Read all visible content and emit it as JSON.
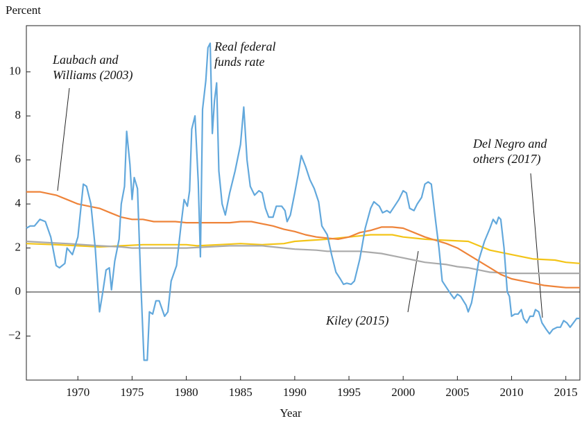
{
  "chart_data": {
    "type": "line",
    "y_label": "Percent",
    "x_label": "Year",
    "xlim": [
      1965.25,
      2016.3
    ],
    "ylim": [
      -4,
      12.1
    ],
    "xticks": [
      1970,
      1975,
      1980,
      1985,
      1990,
      1995,
      2000,
      2005,
      2010,
      2015
    ],
    "yticks": [
      {
        "value": -2,
        "label": "−2"
      },
      0,
      2,
      4,
      6,
      8,
      10
    ],
    "zero_line": true,
    "series": [
      {
        "name": "Real federal funds rate",
        "color": "#62a8dc",
        "x": [
          1965.25,
          1965.6,
          1966,
          1966.5,
          1967,
          1967.5,
          1968,
          1968.3,
          1968.8,
          1969,
          1969.5,
          1970,
          1970.5,
          1970.8,
          1971.2,
          1971.6,
          1972,
          1972.3,
          1972.6,
          1972.9,
          1973.1,
          1973.4,
          1973.8,
          1974,
          1974.3,
          1974.5,
          1974.8,
          1975,
          1975.2,
          1975.5,
          1975.8,
          1976.1,
          1976.4,
          1976.6,
          1976.9,
          1977.2,
          1977.5,
          1978,
          1978.3,
          1978.6,
          1979.1,
          1979.5,
          1979.8,
          1980.1,
          1980.3,
          1980.5,
          1980.8,
          1981.1,
          1981.3,
          1981.5,
          1981.8,
          1982,
          1982.2,
          1982.4,
          1982.6,
          1982.8,
          1983,
          1983.3,
          1983.6,
          1984,
          1984.5,
          1985,
          1985.3,
          1985.6,
          1985.9,
          1986.3,
          1986.7,
          1987,
          1987.3,
          1987.6,
          1988,
          1988.3,
          1988.8,
          1989.1,
          1989.3,
          1989.6,
          1990,
          1990.3,
          1990.6,
          1991,
          1991.4,
          1991.8,
          1992.2,
          1992.5,
          1993,
          1993.4,
          1993.8,
          1994.2,
          1994.5,
          1994.8,
          1995.2,
          1995.5,
          1996,
          1996.5,
          1997,
          1997.3,
          1997.8,
          1998.1,
          1998.5,
          1998.8,
          1999.2,
          1999.6,
          2000,
          2000.3,
          2000.6,
          2001,
          2001.3,
          2001.7,
          2002,
          2002.3,
          2002.6,
          2003,
          2003.3,
          2003.6,
          2004,
          2004.4,
          2004.7,
          2005,
          2005.3,
          2005.8,
          2006,
          2006.3,
          2006.6,
          2007,
          2007.5,
          2008,
          2008.3,
          2008.6,
          2008.8,
          2009,
          2009.3,
          2009.6,
          2009.8,
          2010,
          2010.3,
          2010.6,
          2010.9,
          2011.1,
          2011.4,
          2011.7,
          2012,
          2012.2,
          2012.5,
          2012.8,
          2013.2,
          2013.5,
          2013.8,
          2014.2,
          2014.5,
          2014.8,
          2015.1,
          2015.4,
          2015.7,
          2016,
          2016.3
        ],
        "values": [
          2.9,
          3.0,
          3.0,
          3.3,
          3.2,
          2.5,
          1.2,
          1.1,
          1.3,
          2.0,
          1.7,
          2.5,
          4.9,
          4.8,
          4.0,
          2.0,
          -0.9,
          0.0,
          1.0,
          1.1,
          0.1,
          1.4,
          2.4,
          4.0,
          4.8,
          7.3,
          5.8,
          4.2,
          5.2,
          4.7,
          0.5,
          -3.1,
          -3.1,
          -0.9,
          -1.0,
          -0.4,
          -0.4,
          -1.1,
          -0.9,
          0.5,
          1.2,
          3.0,
          4.2,
          3.9,
          4.6,
          7.4,
          8.0,
          5.0,
          1.6,
          8.3,
          9.6,
          11.1,
          11.3,
          7.2,
          8.7,
          9.5,
          5.5,
          4.0,
          3.5,
          4.5,
          5.5,
          6.7,
          8.4,
          6.0,
          4.8,
          4.4,
          4.6,
          4.5,
          3.8,
          3.4,
          3.4,
          3.9,
          3.9,
          3.7,
          3.2,
          3.5,
          4.5,
          5.3,
          6.2,
          5.7,
          5.1,
          4.7,
          4.1,
          3.0,
          2.6,
          1.7,
          0.9,
          0.6,
          0.35,
          0.4,
          0.35,
          0.5,
          1.5,
          2.9,
          3.8,
          4.1,
          3.9,
          3.6,
          3.7,
          3.6,
          3.9,
          4.2,
          4.6,
          4.5,
          3.8,
          3.7,
          4.0,
          4.3,
          4.9,
          5.0,
          4.9,
          3.2,
          2.0,
          0.5,
          0.2,
          -0.1,
          -0.3,
          -0.1,
          -0.2,
          -0.6,
          -0.9,
          -0.5,
          0.3,
          1.5,
          2.3,
          2.9,
          3.3,
          3.1,
          3.4,
          3.3,
          2.0,
          0.0,
          -0.2,
          -1.1,
          -1.0,
          -1.0,
          -0.8,
          -1.2,
          -1.4,
          -1.1,
          -1.1,
          -0.8,
          -0.9,
          -1.4,
          -1.7,
          -1.9,
          -1.7,
          -1.6,
          -1.6,
          -1.3,
          -1.4,
          -1.6,
          -1.4,
          -1.2,
          -1.2
        ]
      },
      {
        "name": "Laubach and Williams (2003)",
        "color": "#ee8339",
        "x": [
          1965.25,
          1966.5,
          1968,
          1969,
          1970,
          1971,
          1972,
          1973,
          1974,
          1975,
          1976,
          1977,
          1979,
          1980,
          1984,
          1985,
          1986,
          1987,
          1988,
          1989,
          1990,
          1991,
          1992,
          1993,
          1994,
          1995,
          1996,
          1997,
          1998,
          1999,
          2000,
          2001,
          2002,
          2003,
          2004,
          2005,
          2006,
          2007,
          2008,
          2009,
          2010,
          2011,
          2012,
          2013,
          2014,
          2015,
          2016.3
        ],
        "values": [
          4.55,
          4.55,
          4.4,
          4.2,
          4.0,
          3.9,
          3.8,
          3.6,
          3.4,
          3.3,
          3.3,
          3.2,
          3.2,
          3.15,
          3.15,
          3.2,
          3.2,
          3.1,
          3.0,
          2.85,
          2.75,
          2.6,
          2.5,
          2.45,
          2.4,
          2.5,
          2.7,
          2.8,
          2.95,
          2.95,
          2.9,
          2.7,
          2.5,
          2.35,
          2.2,
          2.0,
          1.7,
          1.4,
          1.1,
          0.8,
          0.6,
          0.5,
          0.4,
          0.3,
          0.25,
          0.2,
          0.2
        ]
      },
      {
        "name": "Kiley (2015)",
        "color": "#aaaaaa",
        "x": [
          1965.25,
          1967,
          1969,
          1972,
          1974,
          1975,
          1980,
          1982,
          1984,
          1987,
          1988,
          1989,
          1990,
          1992,
          1993,
          1996,
          1997,
          1998,
          1999,
          2000,
          2001,
          2002,
          2003,
          2004,
          2005,
          2006,
          2007,
          2008,
          2010,
          2016.3
        ],
        "values": [
          2.3,
          2.25,
          2.2,
          2.1,
          2.05,
          2.0,
          2.0,
          2.05,
          2.1,
          2.1,
          2.05,
          2.0,
          1.95,
          1.9,
          1.85,
          1.85,
          1.8,
          1.75,
          1.65,
          1.55,
          1.45,
          1.35,
          1.3,
          1.25,
          1.15,
          1.1,
          1.0,
          0.9,
          0.85,
          0.85
        ]
      },
      {
        "name": "Del Negro and others (2017)",
        "color": "#f3c417",
        "x": [
          1965.25,
          1968,
          1970,
          1972,
          1974,
          1976,
          1980,
          1981,
          1983,
          1985,
          1987,
          1989,
          1990,
          1993,
          1995,
          1997,
          1999,
          2000,
          2002,
          2004,
          2006,
          2007,
          2008,
          2010,
          2012,
          2014,
          2015,
          2016.3
        ],
        "values": [
          2.2,
          2.15,
          2.1,
          2.05,
          2.1,
          2.15,
          2.15,
          2.1,
          2.15,
          2.2,
          2.15,
          2.2,
          2.3,
          2.4,
          2.5,
          2.6,
          2.6,
          2.5,
          2.4,
          2.35,
          2.3,
          2.1,
          1.9,
          1.7,
          1.5,
          1.45,
          1.35,
          1.3
        ]
      }
    ]
  }
}
